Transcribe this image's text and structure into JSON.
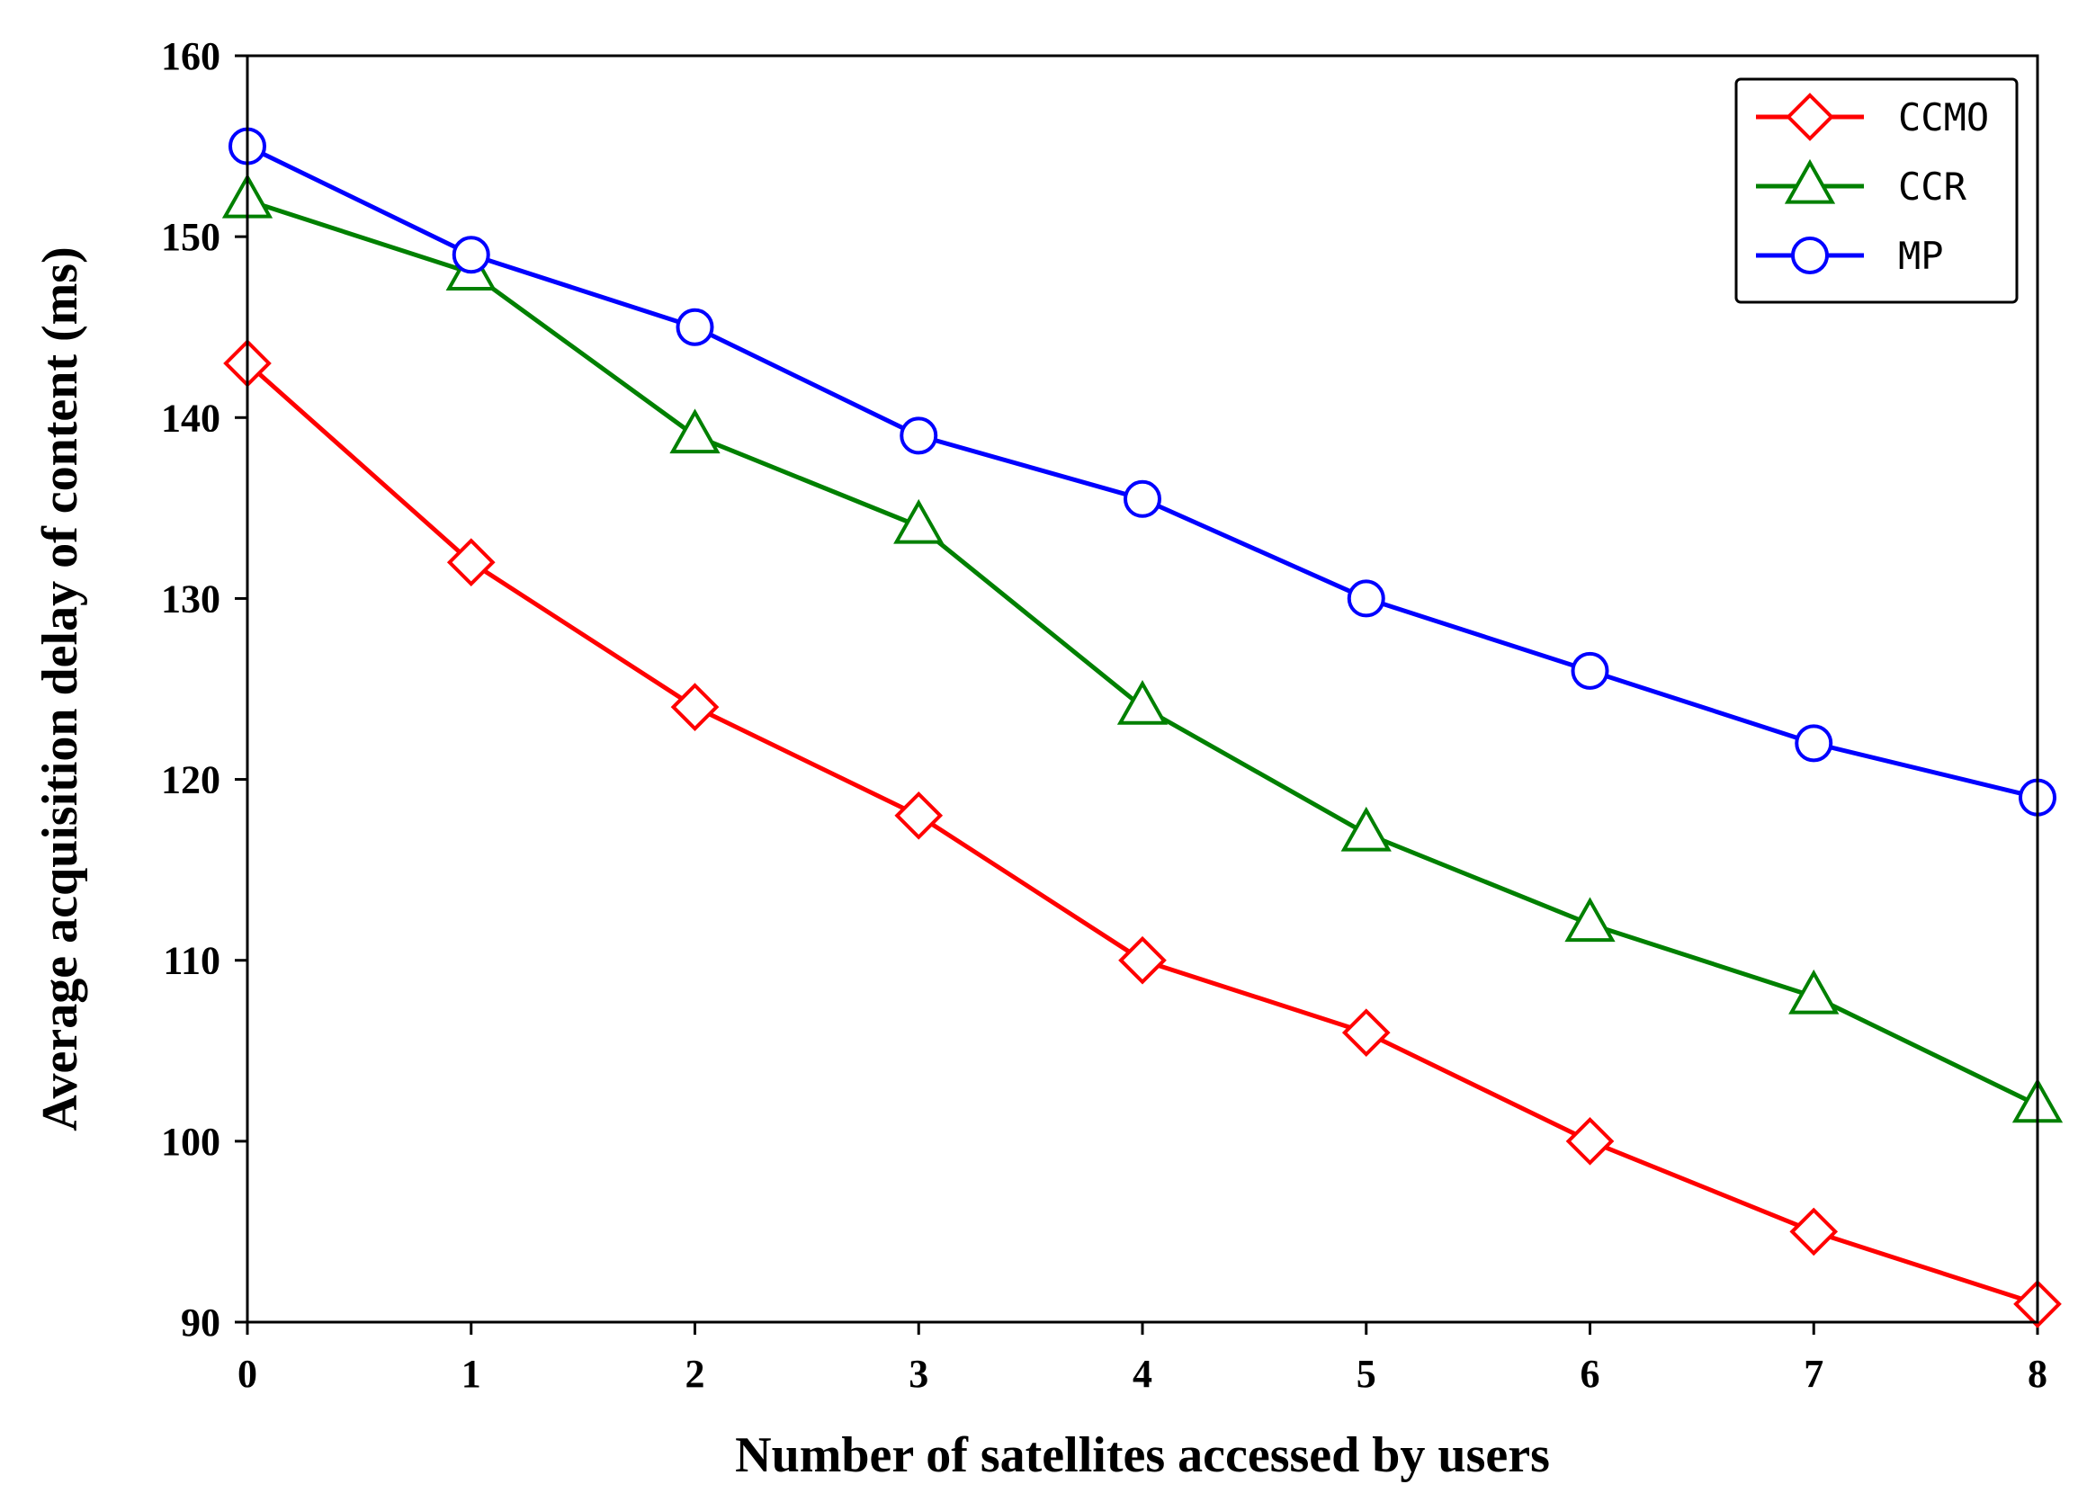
{
  "chart_data": {
    "type": "line",
    "title": "",
    "xlabel": "Number of satellites accessed by users",
    "ylabel": "Average acquisition delay of content (ms)",
    "x": [
      0,
      1,
      2,
      3,
      4,
      5,
      6,
      7,
      8
    ],
    "xlim": [
      0,
      8
    ],
    "ylim": [
      90,
      160
    ],
    "xticks": [
      "0",
      "1",
      "2",
      "3",
      "4",
      "5",
      "6",
      "7",
      "8"
    ],
    "yticks": [
      "90",
      "100",
      "110",
      "120",
      "130",
      "140",
      "150",
      "160"
    ],
    "grid": false,
    "legend_position": "top-right",
    "series": [
      {
        "name": "CCMO",
        "color": "#ff0000",
        "marker": "diamond",
        "values": [
          143,
          132,
          124,
          118,
          110,
          106,
          100,
          95,
          91
        ]
      },
      {
        "name": "CCR",
        "color": "#008000",
        "marker": "triangle",
        "values": [
          152,
          148,
          139,
          134,
          124,
          117,
          112,
          108,
          102
        ]
      },
      {
        "name": "MP",
        "color": "#0000ff",
        "marker": "circle",
        "values": [
          155,
          149,
          145,
          139,
          135.5,
          130,
          126,
          122,
          119
        ]
      }
    ]
  }
}
